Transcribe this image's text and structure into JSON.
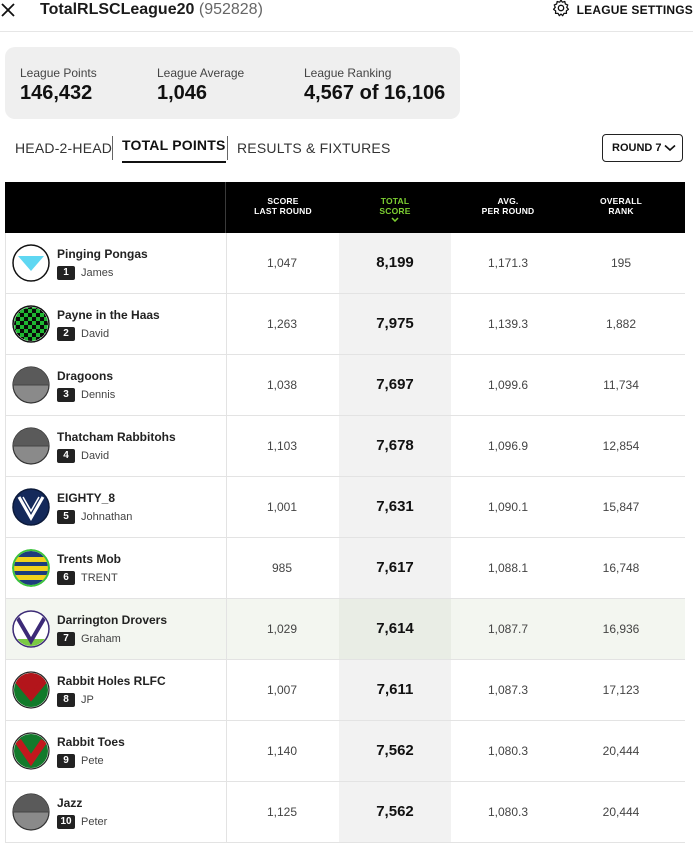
{
  "header": {
    "league_name": "TotalRLSCLeague20",
    "league_id": "(952828)",
    "settings_label": "LEAGUE SETTINGS"
  },
  "stats": [
    {
      "label": "League Points",
      "value": "146,432"
    },
    {
      "label": "League Average",
      "value": "1,046"
    },
    {
      "label": "League Ranking",
      "value": "4,567 of 16,106"
    }
  ],
  "tabs": [
    {
      "label": "HEAD-2-HEAD",
      "active": false
    },
    {
      "label": "TOTAL POINTS",
      "active": true
    },
    {
      "label": "RESULTS & FIXTURES",
      "active": false
    }
  ],
  "round_select": {
    "label": "ROUND 7"
  },
  "table": {
    "headers": {
      "score_last_round": [
        "SCORE",
        "LAST ROUND"
      ],
      "total_score": [
        "TOTAL",
        "SCORE"
      ],
      "avg_per_round": [
        "AVG.",
        "PER ROUND"
      ],
      "overall_rank": [
        "OVERALL",
        "RANK"
      ]
    },
    "rows": [
      {
        "team": "Pinging Pongas",
        "rank": "1",
        "owner": "James",
        "last": "1,047",
        "total": "8,199",
        "avg": "1,171.3",
        "overall": "195",
        "jersey": "pinging"
      },
      {
        "team": "Payne in the Haas",
        "rank": "2",
        "owner": "David",
        "last": "1,263",
        "total": "7,975",
        "avg": "1,139.3",
        "overall": "1,882",
        "jersey": "checker"
      },
      {
        "team": "Dragoons",
        "rank": "3",
        "owner": "Dennis",
        "last": "1,038",
        "total": "7,697",
        "avg": "1,099.6",
        "overall": "11,734",
        "jersey": "grey"
      },
      {
        "team": "Thatcham Rabbitohs",
        "rank": "4",
        "owner": "David",
        "last": "1,103",
        "total": "7,678",
        "avg": "1,096.9",
        "overall": "12,854",
        "jersey": "grey"
      },
      {
        "team": "EIGHTY_8",
        "rank": "5",
        "owner": "Johnathan",
        "last": "1,001",
        "total": "7,631",
        "avg": "1,090.1",
        "overall": "15,847",
        "jersey": "navy-v"
      },
      {
        "team": "Trents Mob",
        "rank": "6",
        "owner": "TRENT",
        "last": "985",
        "total": "7,617",
        "avg": "1,088.1",
        "overall": "16,748",
        "jersey": "stripes"
      },
      {
        "team": "Darrington Drovers",
        "rank": "7",
        "owner": "Graham",
        "last": "1,029",
        "total": "7,614",
        "avg": "1,087.7",
        "overall": "16,936",
        "jersey": "purple-v",
        "highlight": true
      },
      {
        "team": "Rabbit Holes RLFC",
        "rank": "8",
        "owner": "JP",
        "last": "1,007",
        "total": "7,611",
        "avg": "1,087.3",
        "overall": "17,123",
        "jersey": "red-green"
      },
      {
        "team": "Rabbit Toes",
        "rank": "9",
        "owner": "Pete",
        "last": "1,140",
        "total": "7,562",
        "avg": "1,080.3",
        "overall": "20,444",
        "jersey": "green-red"
      },
      {
        "team": "Jazz",
        "rank": "10",
        "owner": "Peter",
        "last": "1,125",
        "total": "7,562",
        "avg": "1,080.3",
        "overall": "20,444",
        "jersey": "grey"
      }
    ]
  },
  "colors": {
    "accent_green": "#7dd032",
    "header_bg": "#000000"
  },
  "icons": {
    "close": "close-icon",
    "settings": "gear-icon",
    "round_dropdown": "chevron-down-icon",
    "sort": "sort-arrow-icon"
  }
}
